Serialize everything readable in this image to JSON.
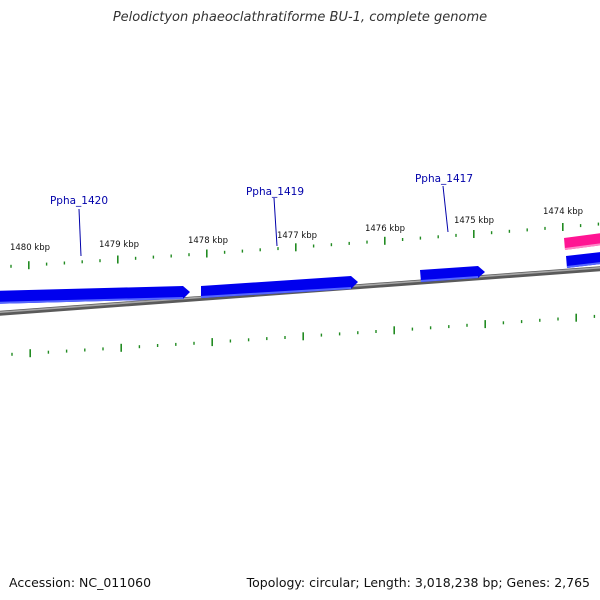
{
  "title": "Pelodictyon phaeoclathratiforme BU-1, complete genome",
  "accession": "Accession: NC_011060",
  "summary": "Topology: circular; Length: 3,018,238 bp; Genes: 2,765",
  "colors": {
    "backbone": "#808080",
    "forward_gene": "#0000ee",
    "reverse_gene": "#ff1493",
    "ticks": "#228b22",
    "gene_label": "#0000aa"
  },
  "scale_labels": [
    "1480 kbp",
    "1479 kbp",
    "1478 kbp",
    "1477 kbp",
    "1476 kbp",
    "1475 kbp",
    "1474 kbp"
  ],
  "gene_labels": [
    "Ppha_1420",
    "Ppha_1419",
    "Ppha_1417"
  ],
  "features": [
    {
      "name": "gene-forward-1",
      "strand": "forward"
    },
    {
      "name": "gene-forward-2",
      "strand": "forward"
    },
    {
      "name": "gene-forward-3",
      "strand": "forward"
    },
    {
      "name": "gene-forward-4",
      "strand": "forward"
    },
    {
      "name": "gene-reverse-1",
      "strand": "reverse"
    }
  ]
}
